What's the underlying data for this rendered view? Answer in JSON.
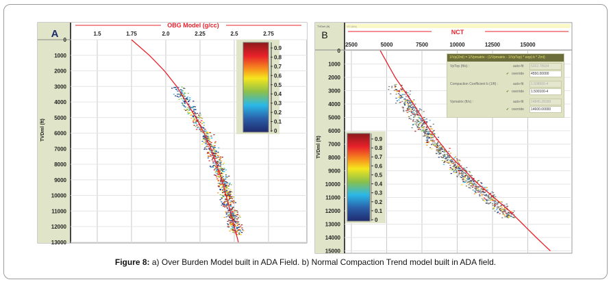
{
  "caption": {
    "label": "Figure 8:",
    "text": " a) Over Burden Model built in ADA Field. b) Normal Compaction Trend model built in ADA field."
  },
  "chart_data": [
    {
      "type": "scatter",
      "panel_label": "A",
      "title": "OBG Model (g/cc)",
      "xlabel": "OBG Model (g/cc)",
      "ylabel": "TVDml (ft)",
      "xlim": [
        1.3,
        2.95
      ],
      "ylim": [
        0,
        13000
      ],
      "xticks": [
        "1.5",
        "1.75",
        "2.0",
        "2.25",
        "2.5",
        "2.75"
      ],
      "yticks": [
        "0",
        "1000",
        "2000",
        "3000",
        "4000",
        "5000",
        "6000",
        "7000",
        "8000",
        "9000",
        "10000",
        "11000",
        "12000",
        "13000"
      ],
      "grid": true,
      "trend_line": {
        "name": "OBG model",
        "color": "#e8202a",
        "depth": [
          0,
          1000,
          2000,
          3000,
          4000,
          5000,
          6000,
          7000,
          8000,
          9000,
          10000,
          11000,
          12000,
          13000
        ],
        "value": [
          1.75,
          1.88,
          1.99,
          2.08,
          2.15,
          2.22,
          2.28,
          2.33,
          2.37,
          2.41,
          2.44,
          2.47,
          2.5,
          2.53
        ]
      },
      "scatter_depth_range": [
        3000,
        12500
      ],
      "colorbar": {
        "labels": [
          "0.9",
          "0.8",
          "0.7",
          "0.6",
          "0.5",
          "0.4",
          "0.3",
          "0.2",
          "0.1",
          "0"
        ],
        "placement": "top-right"
      }
    },
    {
      "type": "scatter",
      "panel_label": "B",
      "title": "NCT",
      "window_title": "VO (ft/s)",
      "axis_corner": "TVDml (ft)",
      "xlabel": "Velocity (ft/s)",
      "ylabel": "TVDml (ft)",
      "xlim": [
        2000,
        17500
      ],
      "ylim": [
        0,
        15000
      ],
      "xticks": [
        "2500",
        "5000",
        "7500",
        "10000",
        "12500",
        "15000"
      ],
      "yticks": [
        "0",
        "1000",
        "2000",
        "3000",
        "4000",
        "5000",
        "6000",
        "7000",
        "8000",
        "9000",
        "10000",
        "11000",
        "12000",
        "13000",
        "14000",
        "15000"
      ],
      "grid": true,
      "trend_line": {
        "name": "NCT",
        "color": "#e8202a",
        "depth": [
          0,
          2000,
          4000,
          6000,
          8000,
          10000,
          12000,
          14000,
          15200
        ],
        "value": [
          4550,
          5600,
          6900,
          8100,
          9600,
          11500,
          13700,
          15600,
          16800
        ]
      },
      "scatter_depth_range": [
        2500,
        12500
      ],
      "colorbar": {
        "labels": [
          "0.9",
          "0.8",
          "0.7",
          "0.6",
          "0.5",
          "0.4",
          "0.3",
          "0.2",
          "0.1",
          "0"
        ],
        "placement": "bottom-left"
      },
      "parameters": {
        "formula": "1/Vp(Zml) = 1/Vpmatrix - (1/Vpmatrix - 1/VpTop) * exp(-b * Zml)",
        "autofit_label": "auto-fit",
        "override_label": "override",
        "items": [
          {
            "label": "VpTop (ft/s) :",
            "autofit": "5202.78934",
            "override": "4550.00000"
          },
          {
            "label": "Compaction Coefficient b (1/ft) :",
            "autofit": "1.508566-4",
            "override": "1.500100-4"
          },
          {
            "label": "Vpmatrix (ft/s) :",
            "autofit": "14845.28399",
            "override": "14600.00000"
          }
        ]
      }
    }
  ]
}
